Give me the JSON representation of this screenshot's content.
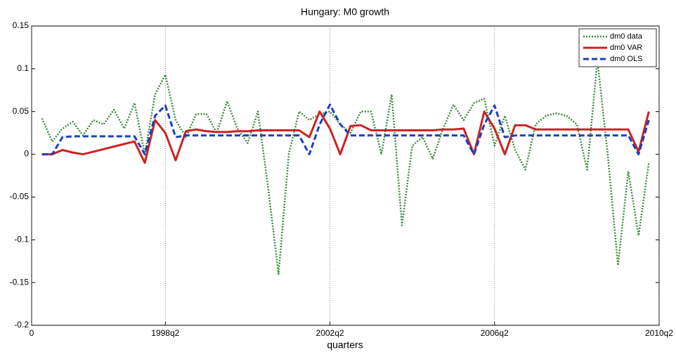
{
  "chart_data": {
    "type": "line",
    "title": "Hungary: M0 growth",
    "xlabel": "quarters",
    "x": [
      1,
      2,
      3,
      4,
      5,
      6,
      7,
      8,
      9,
      10,
      11,
      12,
      13,
      14,
      15,
      16,
      17,
      18,
      19,
      20,
      21,
      22,
      23,
      24,
      25,
      26,
      27,
      28,
      29,
      30,
      31,
      32,
      33,
      34,
      35,
      36,
      37,
      38,
      39,
      40,
      41,
      42,
      43,
      44,
      45,
      46,
      47,
      48,
      49,
      50,
      51,
      52,
      53,
      54,
      55,
      56,
      57,
      58,
      59,
      60
    ],
    "series": [
      {
        "name": "dm0 data",
        "color": "#3c8c3c",
        "style": "dotted",
        "values": [
          0.042,
          0.015,
          0.03,
          0.038,
          0.022,
          0.04,
          0.035,
          0.052,
          0.03,
          0.06,
          0.0,
          0.07,
          0.093,
          0.04,
          0.02,
          0.047,
          0.047,
          0.025,
          0.062,
          0.03,
          0.013,
          0.05,
          -0.04,
          -0.14,
          0.0,
          0.05,
          0.04,
          0.047,
          0.05,
          0.035,
          0.025,
          0.05,
          0.05,
          0.0,
          0.07,
          -0.083,
          0.01,
          0.02,
          -0.005,
          0.03,
          0.058,
          0.04,
          0.06,
          0.065,
          0.01,
          0.045,
          0.005,
          -0.018,
          0.035,
          0.045,
          0.048,
          0.045,
          0.035,
          -0.018,
          0.11,
          0.0,
          -0.13,
          -0.02,
          -0.095,
          -0.01
        ]
      },
      {
        "name": "dm0 VAR",
        "color": "#cc2222",
        "style": "solid",
        "values": [
          0.0,
          0.0,
          0.005,
          0.002,
          0.0,
          0.003,
          0.006,
          0.009,
          0.012,
          0.015,
          -0.01,
          0.04,
          0.025,
          -0.007,
          0.027,
          0.029,
          0.027,
          0.026,
          0.026,
          0.027,
          0.027,
          0.028,
          0.028,
          0.028,
          0.028,
          0.028,
          0.02,
          0.05,
          0.03,
          0.0,
          0.033,
          0.034,
          0.028,
          0.028,
          0.028,
          0.028,
          0.028,
          0.028,
          0.028,
          0.029,
          0.029,
          0.03,
          0.0,
          0.05,
          0.03,
          0.0,
          0.034,
          0.034,
          0.029,
          0.029,
          0.029,
          0.029,
          0.029,
          0.029,
          0.029,
          0.029,
          0.029,
          0.029,
          0.003,
          0.05
        ]
      },
      {
        "name": "dm0 OLS",
        "color": "#1a3fbf",
        "style": "dashed",
        "values": [
          0.0,
          0.0,
          0.02,
          0.021,
          0.021,
          0.021,
          0.021,
          0.021,
          0.021,
          0.021,
          0.0,
          0.045,
          0.057,
          0.02,
          0.022,
          0.022,
          0.022,
          0.022,
          0.022,
          0.022,
          0.022,
          0.022,
          0.022,
          0.022,
          0.022,
          0.022,
          0.0,
          0.035,
          0.058,
          0.035,
          0.022,
          0.022,
          0.022,
          0.022,
          0.022,
          0.022,
          0.022,
          0.022,
          0.022,
          0.022,
          0.022,
          0.022,
          0.0,
          0.035,
          0.057,
          0.02,
          0.022,
          0.022,
          0.022,
          0.022,
          0.022,
          0.022,
          0.022,
          0.022,
          0.022,
          0.022,
          0.022,
          0.022,
          0.0,
          0.04
        ]
      }
    ],
    "xlim": [
      0,
      61
    ],
    "xticks": [
      0,
      {
        "value": 13,
        "label": "1998q2"
      },
      {
        "value": 29,
        "label": "2002q2"
      },
      {
        "value": 45,
        "label": "2006q2"
      },
      {
        "value": 61,
        "label": "2010q2"
      }
    ],
    "ylim": [
      -0.2,
      0.15
    ],
    "yticks": [
      -0.2,
      -0.15,
      -0.1,
      -0.05,
      0,
      0.05,
      0.1,
      0.15
    ],
    "xgrid": true,
    "legend": "top-right"
  }
}
